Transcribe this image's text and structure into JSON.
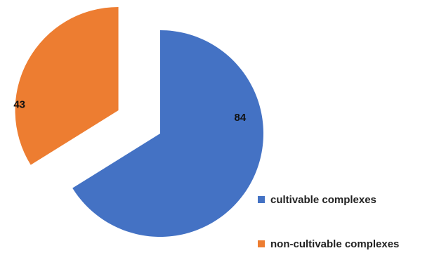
{
  "chart_data": {
    "type": "pie",
    "series": [
      {
        "label": "cultivable complexes",
        "value": 84,
        "color": "#4472C4"
      },
      {
        "label": "non-cultivable complexes",
        "value": 43,
        "color": "#ED7D31"
      }
    ],
    "title": "",
    "legend_position": "bottom-right",
    "exploded": true
  }
}
